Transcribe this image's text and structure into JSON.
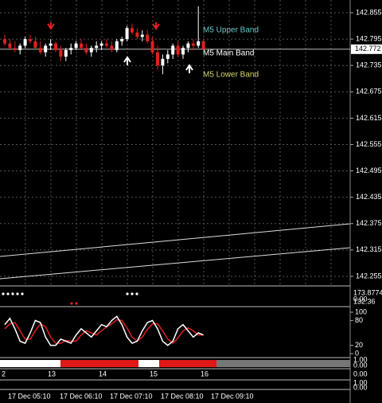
{
  "chart_data": {
    "type": "candlestick",
    "ylim": [
      142.884,
      142.235
    ],
    "yticks": [
      142.855,
      142.795,
      142.735,
      142.675,
      142.615,
      142.555,
      142.495,
      142.435,
      142.375,
      142.315,
      142.255
    ],
    "current_price": 142.772,
    "band_labels": [
      "M5 Upper Band",
      "M5 Main Band",
      "M5 Lower Band"
    ],
    "candles": [
      [
        142.795,
        142.805,
        142.78,
        142.785
      ],
      [
        142.785,
        142.795,
        142.77,
        142.775
      ],
      [
        142.775,
        142.79,
        142.765,
        142.77
      ],
      [
        142.77,
        142.785,
        142.76,
        142.78
      ],
      [
        142.78,
        142.8,
        142.775,
        142.795
      ],
      [
        142.795,
        142.805,
        142.785,
        142.79
      ],
      [
        142.79,
        142.8,
        142.77,
        142.775
      ],
      [
        142.775,
        142.79,
        142.76,
        142.765
      ],
      [
        142.765,
        142.785,
        142.755,
        142.78
      ],
      [
        142.78,
        142.795,
        142.77,
        142.785
      ],
      [
        142.785,
        142.79,
        142.765,
        142.77
      ],
      [
        142.77,
        142.78,
        142.745,
        142.755
      ],
      [
        142.755,
        142.775,
        142.745,
        142.77
      ],
      [
        142.77,
        142.785,
        142.76,
        142.775
      ],
      [
        142.775,
        142.79,
        142.77,
        142.785
      ],
      [
        142.785,
        142.795,
        142.77,
        142.775
      ],
      [
        142.775,
        142.785,
        142.76,
        142.765
      ],
      [
        142.765,
        142.78,
        142.755,
        142.775
      ],
      [
        142.775,
        142.79,
        142.765,
        142.78
      ],
      [
        142.78,
        142.79,
        142.77,
        142.785
      ],
      [
        142.785,
        142.795,
        142.775,
        142.78
      ],
      [
        142.78,
        142.79,
        142.765,
        142.77
      ],
      [
        142.77,
        142.795,
        142.765,
        142.79
      ],
      [
        142.79,
        142.8,
        142.78,
        142.795
      ],
      [
        142.795,
        142.825,
        142.79,
        142.82
      ],
      [
        142.82,
        142.83,
        142.805,
        142.81
      ],
      [
        142.81,
        142.82,
        142.795,
        142.8
      ],
      [
        142.8,
        142.815,
        142.79,
        142.805
      ],
      [
        142.805,
        142.815,
        142.785,
        142.79
      ],
      [
        142.79,
        142.8,
        142.76,
        142.765
      ],
      [
        142.765,
        142.78,
        142.725,
        142.735
      ],
      [
        142.735,
        142.76,
        142.715,
        142.75
      ],
      [
        142.75,
        142.77,
        142.74,
        142.76
      ],
      [
        142.76,
        142.785,
        142.75,
        142.78
      ],
      [
        142.78,
        142.79,
        142.755,
        142.76
      ],
      [
        142.76,
        142.78,
        142.75,
        142.775
      ],
      [
        142.775,
        142.79,
        142.765,
        142.785
      ],
      [
        142.785,
        142.795,
        142.77,
        142.78
      ],
      [
        142.78,
        142.87,
        142.775,
        142.79
      ],
      [
        142.79,
        142.795,
        142.765,
        142.772
      ]
    ],
    "indicator_labels": [
      "173.8774",
      "0.00",
      "132.36"
    ],
    "stoch_ylim": [
      0,
      100
    ],
    "stoch_yticks": [
      100,
      80,
      20,
      0
    ],
    "stoch_main": [
      70,
      85,
      60,
      30,
      25,
      50,
      80,
      75,
      40,
      20,
      20,
      35,
      30,
      25,
      45,
      60,
      50,
      40,
      55,
      70,
      65,
      80,
      90,
      70,
      40,
      25,
      30,
      55,
      75,
      80,
      60,
      30,
      20,
      30,
      60,
      70,
      55,
      40,
      50,
      45
    ],
    "stoch_signal": [
      60,
      72,
      75,
      55,
      35,
      35,
      55,
      72,
      65,
      40,
      25,
      25,
      32,
      30,
      30,
      45,
      55,
      50,
      45,
      55,
      65,
      72,
      82,
      80,
      62,
      40,
      30,
      40,
      58,
      72,
      72,
      55,
      35,
      25,
      38,
      55,
      62,
      55,
      45,
      45
    ],
    "lower_labels": [
      "1.00",
      "0.00",
      "0.00",
      "1.00",
      "0.00"
    ],
    "hours": [
      "2",
      "13",
      "14",
      "15",
      "16"
    ],
    "times": [
      "17 Dec 05:10",
      "17 Dec 06:10",
      "17 Dec 07:10",
      "17 Dec 08:10",
      "17 Dec 09:10"
    ]
  }
}
